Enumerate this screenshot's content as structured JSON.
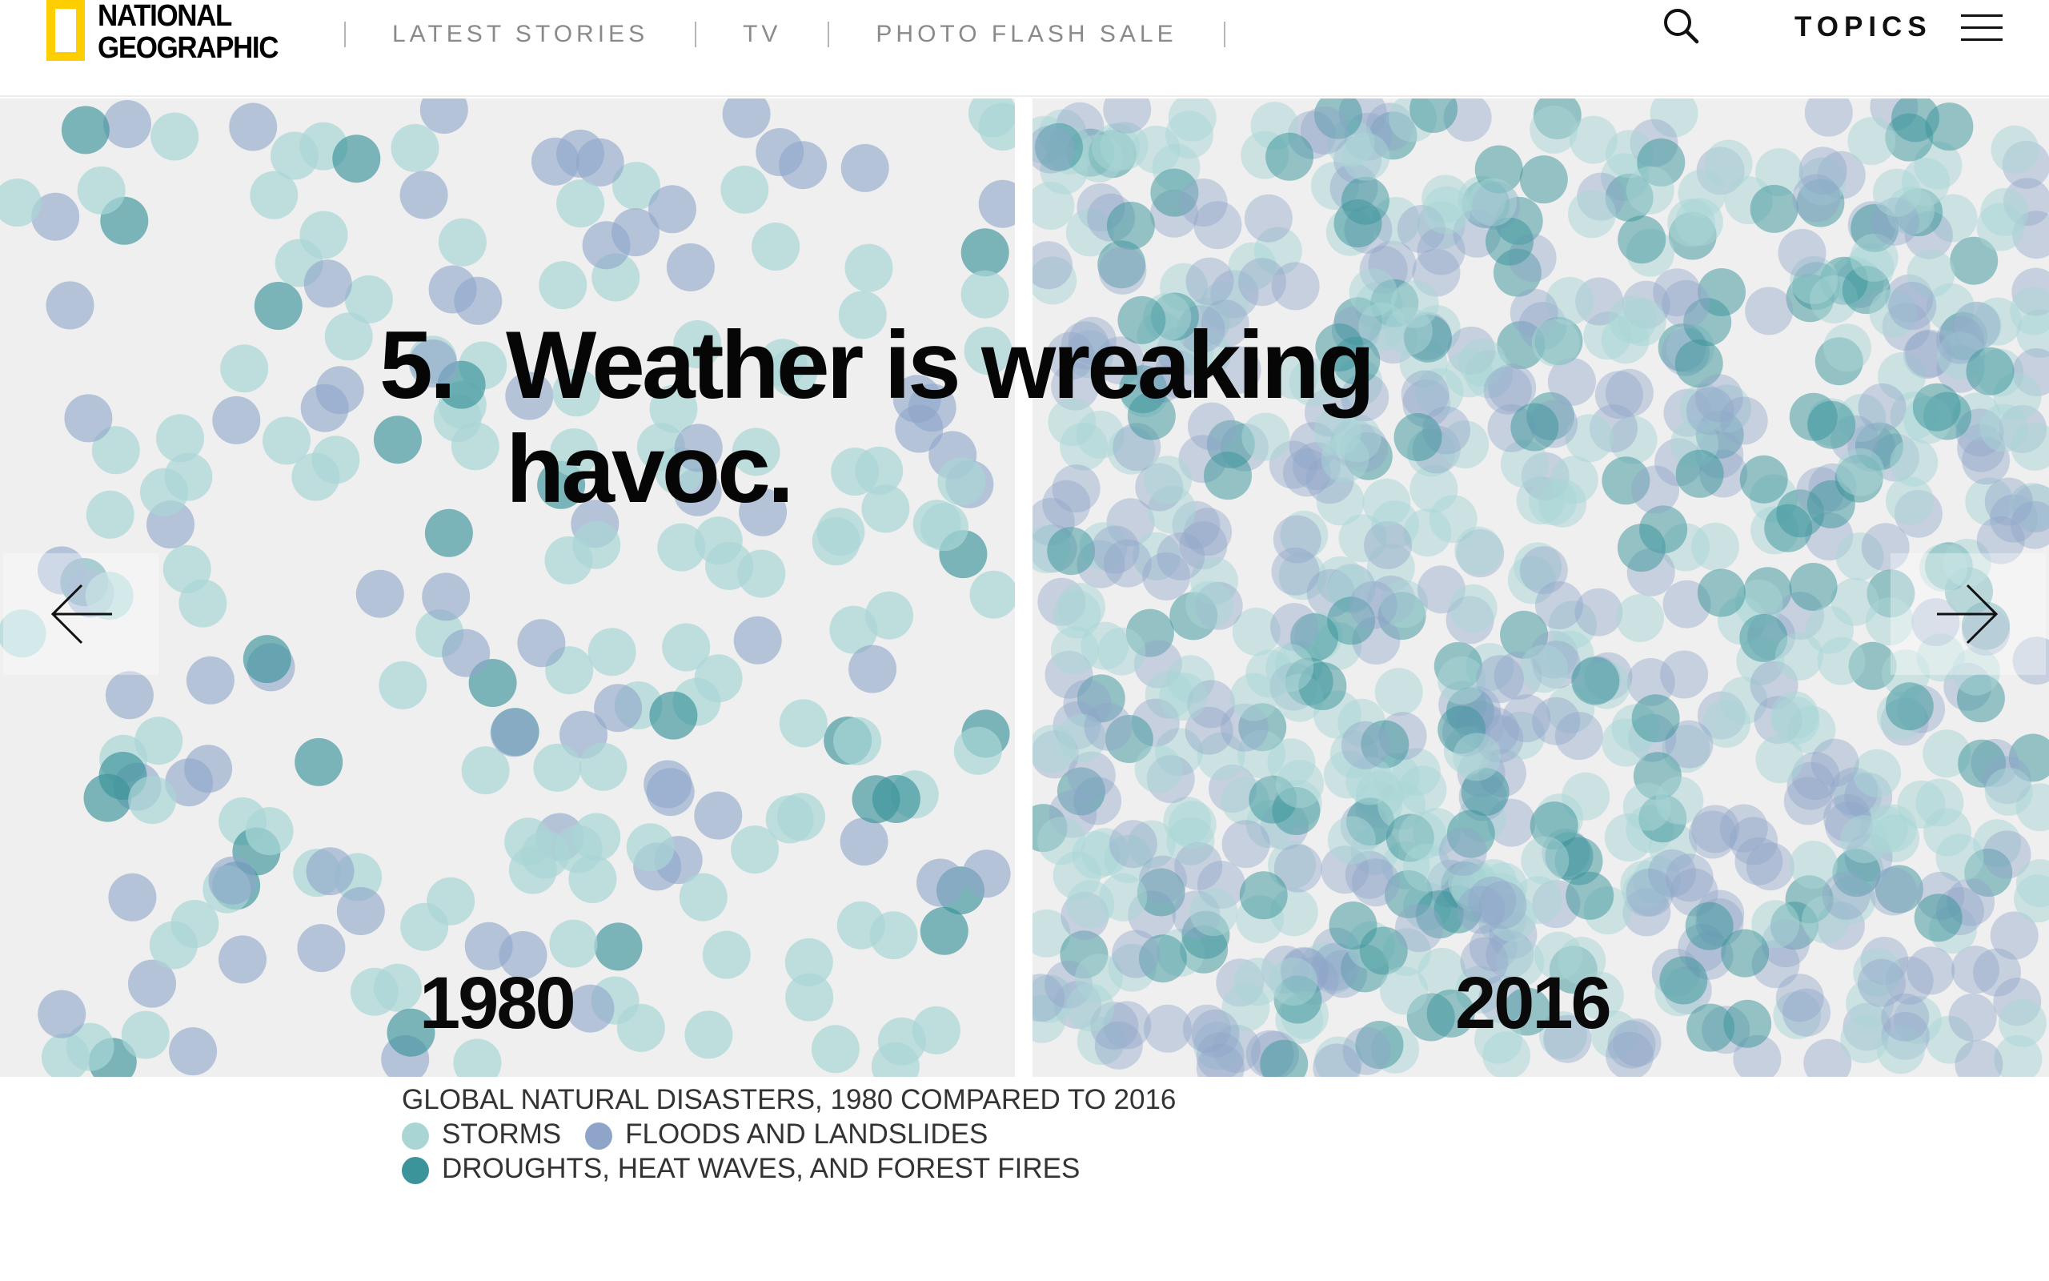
{
  "header": {
    "logo_line1": "NATIONAL",
    "logo_line2": "GEOGRAPHIC",
    "nav": [
      "LATEST STORIES",
      "TV",
      "PHOTO FLASH SALE"
    ],
    "topics_label": "TOPICS",
    "search_icon": "search-icon",
    "menu_icon": "hamburger-menu-icon"
  },
  "slide": {
    "number": "5.",
    "headline_line1": "Weather is wreaking",
    "headline_line2": "havoc.",
    "left_year": "1980",
    "right_year": "2016",
    "prev_icon": "arrow-left-icon",
    "next_icon": "arrow-right-icon"
  },
  "legend": {
    "title": "GLOBAL NATURAL DISASTERS, 1980 COMPARED TO 2016",
    "storms": "STORMS",
    "floods": "FLOODS AND LANDSLIDES",
    "droughts": "DROUGHTS, HEAT WAVES, AND FOREST FIRES"
  },
  "colors": {
    "logo_yellow": "#FFCE00",
    "storm": "#a9d6d5",
    "flood": "#8ea5c9",
    "drought": "#3a9499",
    "panel_bg": "#efefef"
  },
  "chart_data": {
    "type": "scatter",
    "title": "GLOBAL NATURAL DISASTERS, 1980 COMPARED TO 2016",
    "categories": [
      "STORMS",
      "FLOODS AND LANDSLIDES",
      "DROUGHTS, HEAT WAVES, AND FOREST FIRES"
    ],
    "panels": [
      "1980",
      "2016"
    ],
    "note": ""
  }
}
